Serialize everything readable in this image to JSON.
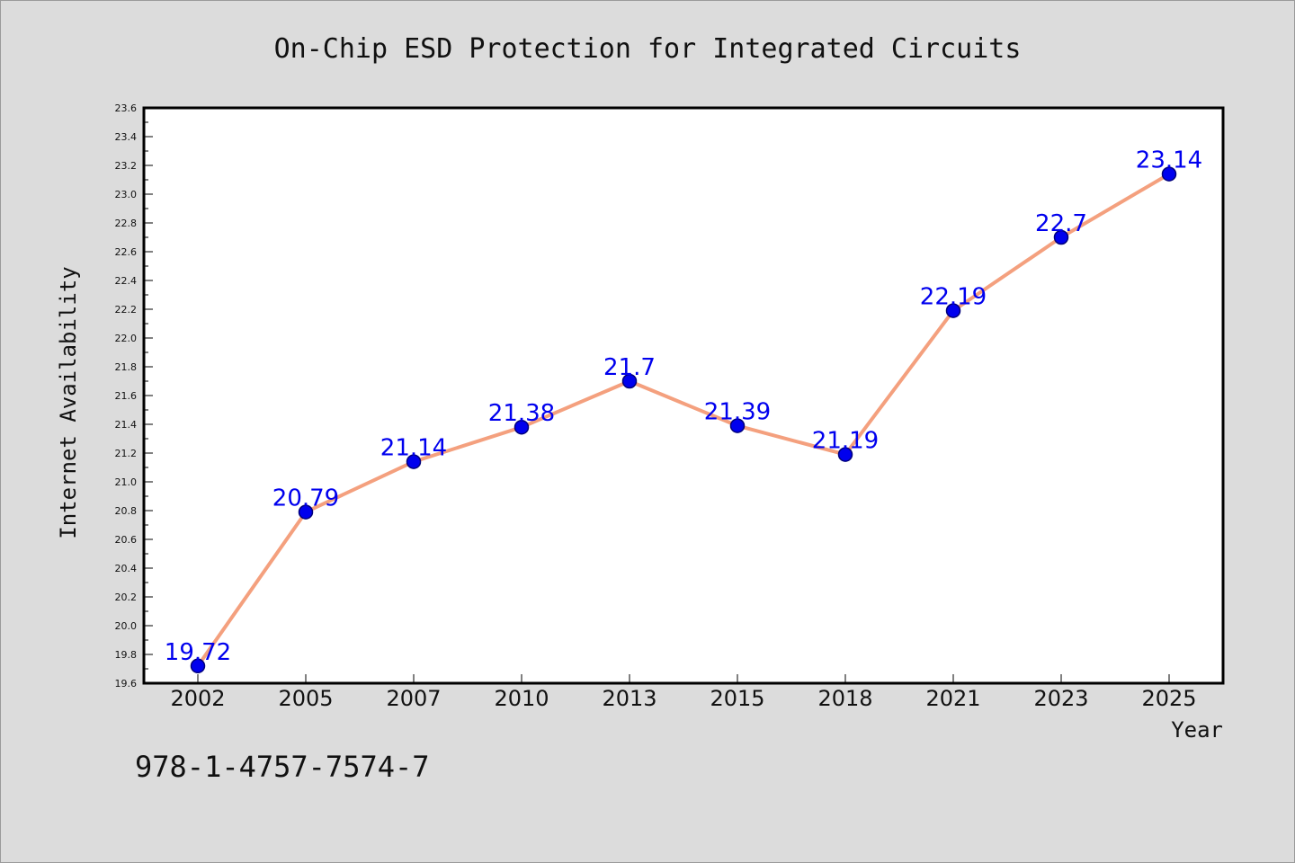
{
  "chart_data": {
    "type": "line",
    "title": "On-Chip ESD Protection for Integrated Circuits",
    "xlabel": "Year",
    "ylabel": "Internet Availability",
    "x": [
      "2002",
      "2005",
      "2007",
      "2010",
      "2013",
      "2015",
      "2018",
      "2021",
      "2023",
      "2025"
    ],
    "series": [
      {
        "values": [
          19.72,
          20.79,
          21.14,
          21.38,
          21.7,
          21.39,
          21.19,
          22.19,
          22.7,
          23.14
        ],
        "data_labels": [
          "19.72",
          "20.79",
          "21.14",
          "21.38",
          "21.7",
          "21.39",
          "21.19",
          "22.19",
          "22.7",
          "23.14"
        ]
      }
    ],
    "ylim": [
      19.6,
      23.6
    ],
    "y_ticks": [
      "19.6",
      "19.8",
      "20.0",
      "20.2",
      "20.4",
      "20.6",
      "20.8",
      "21.0",
      "21.2",
      "21.4",
      "21.6",
      "21.8",
      "22.0",
      "22.2",
      "22.4",
      "22.6",
      "22.8",
      "23.0",
      "23.2",
      "23.4",
      "23.6"
    ],
    "grid": false,
    "legend": "none",
    "colors": {
      "line": "#f4a07e",
      "marker_fill": "#0000ee",
      "marker_edge": "#00007a",
      "data_label": "#0000ee",
      "background": "#dcdcdc",
      "plot_background": "#ffffff"
    }
  },
  "footer": {
    "isbn": "978-1-4757-7574-7"
  }
}
